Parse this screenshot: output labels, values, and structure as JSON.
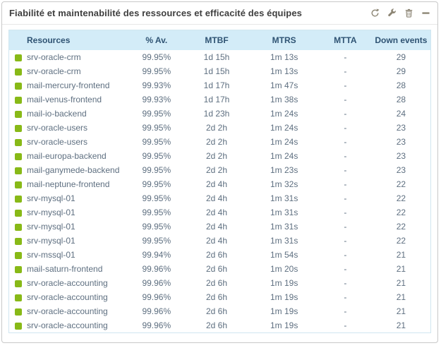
{
  "widget": {
    "title": "Fiabilité et maintenabilité des ressources et efficacité des équipes",
    "toolbar": {
      "icons": [
        "refresh-icon",
        "wrench-icon",
        "trash-icon",
        "minimize-icon"
      ]
    }
  },
  "table": {
    "columns": [
      "Resources",
      "% Av.",
      "MTBF",
      "MTRS",
      "MTTA",
      "Down events"
    ],
    "rows": [
      {
        "name": "srv-oracle-crm",
        "availability": "99.95%",
        "mtbf": "1d 15h",
        "mtrs": "1m 13s",
        "mtta": "-",
        "down_events": "29",
        "status": "up"
      },
      {
        "name": "srv-oracle-crm",
        "availability": "99.95%",
        "mtbf": "1d 15h",
        "mtrs": "1m 13s",
        "mtta": "-",
        "down_events": "29",
        "status": "up"
      },
      {
        "name": "mail-mercury-frontend",
        "availability": "99.93%",
        "mtbf": "1d 17h",
        "mtrs": "1m 47s",
        "mtta": "-",
        "down_events": "28",
        "status": "up"
      },
      {
        "name": "mail-venus-frontend",
        "availability": "99.93%",
        "mtbf": "1d 17h",
        "mtrs": "1m 38s",
        "mtta": "-",
        "down_events": "28",
        "status": "up"
      },
      {
        "name": "mail-io-backend",
        "availability": "99.95%",
        "mtbf": "1d 23h",
        "mtrs": "1m 24s",
        "mtta": "-",
        "down_events": "24",
        "status": "up"
      },
      {
        "name": "srv-oracle-users",
        "availability": "99.95%",
        "mtbf": "2d 2h",
        "mtrs": "1m 24s",
        "mtta": "-",
        "down_events": "23",
        "status": "up"
      },
      {
        "name": "srv-oracle-users",
        "availability": "99.95%",
        "mtbf": "2d 2h",
        "mtrs": "1m 24s",
        "mtta": "-",
        "down_events": "23",
        "status": "up"
      },
      {
        "name": "mail-europa-backend",
        "availability": "99.95%",
        "mtbf": "2d 2h",
        "mtrs": "1m 24s",
        "mtta": "-",
        "down_events": "23",
        "status": "up"
      },
      {
        "name": "mail-ganymede-backend",
        "availability": "99.95%",
        "mtbf": "2d 2h",
        "mtrs": "1m 23s",
        "mtta": "-",
        "down_events": "23",
        "status": "up"
      },
      {
        "name": "mail-neptune-frontend",
        "availability": "99.95%",
        "mtbf": "2d 4h",
        "mtrs": "1m 32s",
        "mtta": "-",
        "down_events": "22",
        "status": "up"
      },
      {
        "name": "srv-mysql-01",
        "availability": "99.95%",
        "mtbf": "2d 4h",
        "mtrs": "1m 31s",
        "mtta": "-",
        "down_events": "22",
        "status": "up"
      },
      {
        "name": "srv-mysql-01",
        "availability": "99.95%",
        "mtbf": "2d 4h",
        "mtrs": "1m 31s",
        "mtta": "-",
        "down_events": "22",
        "status": "up"
      },
      {
        "name": "srv-mysql-01",
        "availability": "99.95%",
        "mtbf": "2d 4h",
        "mtrs": "1m 31s",
        "mtta": "-",
        "down_events": "22",
        "status": "up"
      },
      {
        "name": "srv-mysql-01",
        "availability": "99.95%",
        "mtbf": "2d 4h",
        "mtrs": "1m 31s",
        "mtta": "-",
        "down_events": "22",
        "status": "up"
      },
      {
        "name": "srv-mssql-01",
        "availability": "99.94%",
        "mtbf": "2d 6h",
        "mtrs": "1m 54s",
        "mtta": "-",
        "down_events": "21",
        "status": "up"
      },
      {
        "name": "mail-saturn-frontend",
        "availability": "99.96%",
        "mtbf": "2d 6h",
        "mtrs": "1m 20s",
        "mtta": "-",
        "down_events": "21",
        "status": "up"
      },
      {
        "name": "srv-oracle-accounting",
        "availability": "99.96%",
        "mtbf": "2d 6h",
        "mtrs": "1m 19s",
        "mtta": "-",
        "down_events": "21",
        "status": "up"
      },
      {
        "name": "srv-oracle-accounting",
        "availability": "99.96%",
        "mtbf": "2d 6h",
        "mtrs": "1m 19s",
        "mtta": "-",
        "down_events": "21",
        "status": "up"
      },
      {
        "name": "srv-oracle-accounting",
        "availability": "99.96%",
        "mtbf": "2d 6h",
        "mtrs": "1m 19s",
        "mtta": "-",
        "down_events": "21",
        "status": "up"
      },
      {
        "name": "srv-oracle-accounting",
        "availability": "99.96%",
        "mtbf": "2d 6h",
        "mtrs": "1m 19s",
        "mtta": "-",
        "down_events": "21",
        "status": "up"
      }
    ]
  },
  "colors": {
    "status_up": "#88b917",
    "thead_bg": "#d3ecf8",
    "thead_text": "#2f5373",
    "cell_text": "#5e6f80",
    "title_text": "#3f3f3f",
    "icon": "#8c8574",
    "table_border": "#d0e6f0",
    "widget_border": "#c8c8c8",
    "header_separator": "#e7e7e7"
  }
}
